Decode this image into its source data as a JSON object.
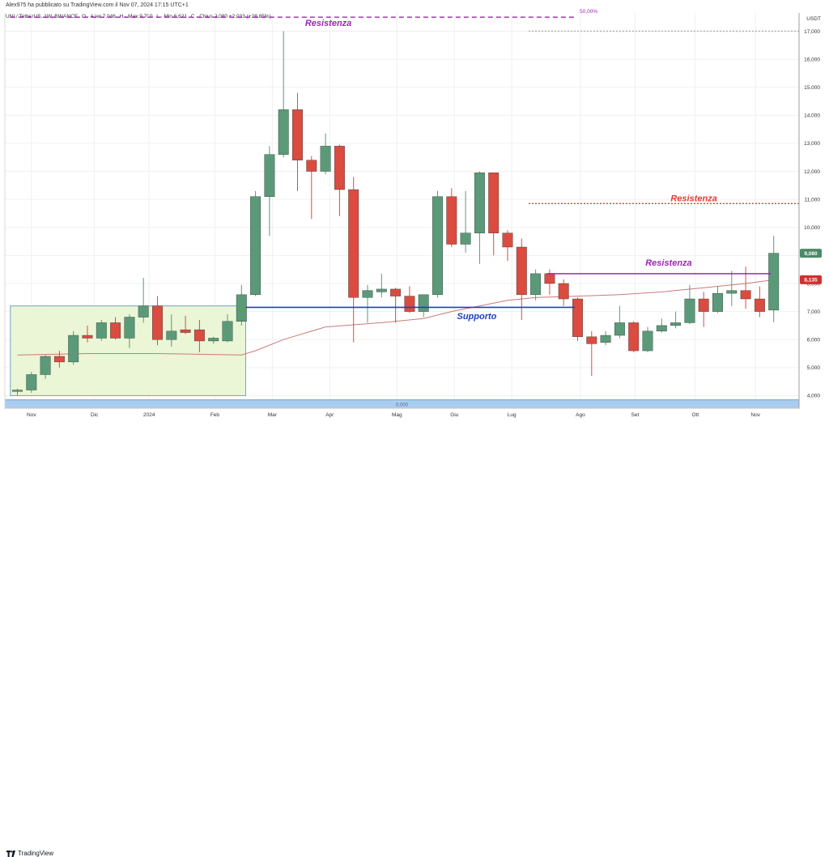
{
  "header": {
    "publisher": "Alex975 ha pubblicato su TradingView.com il Nov 07, 2024 17:15 UTC+1",
    "symbol": "UNI / TetherUS, 1W, BINANCE",
    "open": "O · Aper.7,046",
    "high": "H · Max.9,700",
    "low": "L · Min.6,621",
    "close": "C · Chius.9,080 +2,033 (+28,85%)"
  },
  "footer": {
    "brand": "TradingView"
  },
  "chart_data": {
    "type": "candlestick",
    "currency_label": "USDT",
    "ylim": [
      3.55,
      17.65
    ],
    "y_ticks": [
      4,
      5,
      6,
      7,
      8,
      9,
      10,
      11,
      12,
      13,
      14,
      15,
      16,
      17
    ],
    "y_tick_labels": [
      "4,000",
      "5,000",
      "6,000",
      "7,000",
      "8,000",
      "9,000",
      "10,000",
      "11,000",
      "12,000",
      "13,000",
      "14,000",
      "15,000",
      "16,000",
      "17,000"
    ],
    "x_labels": [
      {
        "label": "Nov",
        "index": 1
      },
      {
        "label": "Dic",
        "index": 5.5
      },
      {
        "label": "2024",
        "index": 9.4
      },
      {
        "label": "Feb",
        "index": 14.1
      },
      {
        "label": "Mar",
        "index": 18.2
      },
      {
        "label": "Apr",
        "index": 22.3
      },
      {
        "label": "Mag",
        "index": 27.1
      },
      {
        "label": "Giu",
        "index": 31.2
      },
      {
        "label": "Lug",
        "index": 35.3
      },
      {
        "label": "Ago",
        "index": 40.2
      },
      {
        "label": "Set",
        "index": 44.1
      },
      {
        "label": "Ott",
        "index": 48.4
      },
      {
        "label": "Nov",
        "index": 52.7
      }
    ],
    "candles": [
      {
        "o": 4.15,
        "h": 4.25,
        "l": 4.0,
        "c": 4.2
      },
      {
        "o": 4.2,
        "h": 4.85,
        "l": 4.1,
        "c": 4.75
      },
      {
        "o": 4.75,
        "h": 5.45,
        "l": 4.6,
        "c": 5.4
      },
      {
        "o": 5.4,
        "h": 5.6,
        "l": 5.0,
        "c": 5.2
      },
      {
        "o": 5.2,
        "h": 6.3,
        "l": 5.1,
        "c": 6.15
      },
      {
        "o": 6.15,
        "h": 6.5,
        "l": 5.9,
        "c": 6.05
      },
      {
        "o": 6.05,
        "h": 6.7,
        "l": 5.95,
        "c": 6.6
      },
      {
        "o": 6.6,
        "h": 6.8,
        "l": 6.0,
        "c": 6.05
      },
      {
        "o": 6.05,
        "h": 6.9,
        "l": 5.7,
        "c": 6.8
      },
      {
        "o": 6.8,
        "h": 8.2,
        "l": 6.6,
        "c": 7.2
      },
      {
        "o": 7.2,
        "h": 7.55,
        "l": 5.8,
        "c": 6.0
      },
      {
        "o": 6.0,
        "h": 6.9,
        "l": 5.75,
        "c": 6.3
      },
      {
        "o": 6.35,
        "h": 6.85,
        "l": 6.2,
        "c": 6.25
      },
      {
        "o": 6.35,
        "h": 6.7,
        "l": 5.55,
        "c": 5.95
      },
      {
        "o": 5.95,
        "h": 6.1,
        "l": 5.85,
        "c": 6.05
      },
      {
        "o": 5.95,
        "h": 6.9,
        "l": 5.9,
        "c": 6.65
      },
      {
        "o": 6.65,
        "h": 7.95,
        "l": 6.5,
        "c": 7.6
      },
      {
        "o": 7.6,
        "h": 11.3,
        "l": 7.55,
        "c": 11.1
      },
      {
        "o": 11.1,
        "h": 12.9,
        "l": 9.7,
        "c": 12.6
      },
      {
        "o": 12.6,
        "h": 17.0,
        "l": 12.5,
        "c": 14.2
      },
      {
        "o": 14.2,
        "h": 14.8,
        "l": 11.3,
        "c": 12.4
      },
      {
        "o": 12.4,
        "h": 12.55,
        "l": 10.3,
        "c": 12.0
      },
      {
        "o": 12.0,
        "h": 13.35,
        "l": 11.9,
        "c": 12.9
      },
      {
        "o": 12.9,
        "h": 12.95,
        "l": 10.4,
        "c": 11.35
      },
      {
        "o": 11.35,
        "h": 11.8,
        "l": 5.9,
        "c": 7.5
      },
      {
        "o": 7.5,
        "h": 7.95,
        "l": 6.6,
        "c": 7.75
      },
      {
        "o": 7.7,
        "h": 8.35,
        "l": 7.5,
        "c": 7.8
      },
      {
        "o": 7.8,
        "h": 7.85,
        "l": 6.6,
        "c": 7.55
      },
      {
        "o": 7.55,
        "h": 7.9,
        "l": 6.95,
        "c": 7.0
      },
      {
        "o": 7.0,
        "h": 7.6,
        "l": 6.8,
        "c": 7.6
      },
      {
        "o": 7.6,
        "h": 11.3,
        "l": 7.5,
        "c": 11.1
      },
      {
        "o": 11.1,
        "h": 11.4,
        "l": 9.3,
        "c": 9.4
      },
      {
        "o": 9.4,
        "h": 11.3,
        "l": 9.1,
        "c": 9.8
      },
      {
        "o": 9.8,
        "h": 12.0,
        "l": 8.7,
        "c": 11.95
      },
      {
        "o": 11.95,
        "h": 11.95,
        "l": 9.0,
        "c": 9.8
      },
      {
        "o": 9.8,
        "h": 9.9,
        "l": 8.8,
        "c": 9.3
      },
      {
        "o": 9.3,
        "h": 9.6,
        "l": 6.7,
        "c": 7.6
      },
      {
        "o": 7.6,
        "h": 8.5,
        "l": 7.4,
        "c": 8.35
      },
      {
        "o": 8.35,
        "h": 8.5,
        "l": 7.6,
        "c": 8.0
      },
      {
        "o": 8.0,
        "h": 8.15,
        "l": 7.2,
        "c": 7.45
      },
      {
        "o": 7.45,
        "h": 7.5,
        "l": 5.95,
        "c": 6.1
      },
      {
        "o": 6.1,
        "h": 6.3,
        "l": 4.7,
        "c": 5.85
      },
      {
        "o": 5.9,
        "h": 6.3,
        "l": 5.8,
        "c": 6.15
      },
      {
        "o": 6.15,
        "h": 7.2,
        "l": 6.05,
        "c": 6.6
      },
      {
        "o": 6.6,
        "h": 6.65,
        "l": 5.55,
        "c": 5.6
      },
      {
        "o": 5.6,
        "h": 6.45,
        "l": 5.55,
        "c": 6.3
      },
      {
        "o": 6.3,
        "h": 6.75,
        "l": 6.25,
        "c": 6.5
      },
      {
        "o": 6.5,
        "h": 7.0,
        "l": 6.4,
        "c": 6.6
      },
      {
        "o": 6.6,
        "h": 7.95,
        "l": 6.55,
        "c": 7.45
      },
      {
        "o": 7.45,
        "h": 7.7,
        "l": 6.45,
        "c": 7.0
      },
      {
        "o": 7.0,
        "h": 7.9,
        "l": 6.95,
        "c": 7.65
      },
      {
        "o": 7.65,
        "h": 8.45,
        "l": 7.2,
        "c": 7.75
      },
      {
        "o": 7.75,
        "h": 8.6,
        "l": 7.1,
        "c": 7.45
      },
      {
        "o": 7.45,
        "h": 7.9,
        "l": 6.8,
        "c": 7.0
      },
      {
        "o": 7.05,
        "h": 9.7,
        "l": 6.62,
        "c": 9.08
      }
    ],
    "moving_average": [
      [
        0,
        5.45
      ],
      [
        5,
        5.5
      ],
      [
        10,
        5.5
      ],
      [
        16,
        5.45
      ],
      [
        17,
        5.6
      ],
      [
        19,
        6.0
      ],
      [
        22,
        6.45
      ],
      [
        26,
        6.6
      ],
      [
        29,
        6.75
      ],
      [
        31,
        7.0
      ],
      [
        33,
        7.2
      ],
      [
        35,
        7.4
      ],
      [
        37,
        7.5
      ],
      [
        40,
        7.55
      ],
      [
        43,
        7.6
      ],
      [
        46,
        7.7
      ],
      [
        49,
        7.85
      ],
      [
        52,
        8.0
      ],
      [
        54,
        8.13
      ]
    ],
    "support_zone": {
      "x_start_index": -0.5,
      "x_end_index": 16.3,
      "y_low": 4.0,
      "y_high": 7.2
    },
    "bottom_zone": {
      "y_low": 3.55,
      "y_high": 3.85,
      "label": "0,000"
    },
    "levels": [
      {
        "name": "fib-50-line",
        "label": "50,00%",
        "y": 17.5,
        "x_start_index": -0.5,
        "x_end_index": 39.8,
        "style": "dashed",
        "color": "#9c27b0"
      },
      {
        "name": "top-grey-line",
        "label": "",
        "y": 17.0,
        "x_start_index": 36.5,
        "x_end_index": 55.8,
        "style": "dotted",
        "color": "#b0b0b0"
      },
      {
        "name": "red-resistance-line",
        "label": "",
        "y": 10.85,
        "x_start_index": 36.5,
        "x_end_index": 55.8,
        "style": "dotted",
        "color": "#e53935"
      },
      {
        "name": "purple-resistance-line",
        "label": "",
        "y": 8.35,
        "x_start_index": 37.8,
        "x_end_index": 53.8,
        "style": "solid",
        "color": "#9c27b0"
      },
      {
        "name": "support-line",
        "label": "",
        "y": 7.15,
        "x_start_index": 16.3,
        "x_end_index": 39.8,
        "style": "solid",
        "color": "#1e40c4"
      }
    ],
    "annotations": [
      {
        "name": "resistance-label-top",
        "text": "Resistenza",
        "index": 22.2,
        "y": 17.3,
        "color": "#9c27b0"
      },
      {
        "name": "resistance-label-red",
        "text": "Resistenza",
        "index": 48.3,
        "y": 11.05,
        "color": "#e53935"
      },
      {
        "name": "resistance-label-purple",
        "text": "Resistenza",
        "index": 46.5,
        "y": 8.75,
        "color": "#9c27b0"
      },
      {
        "name": "support-label",
        "text": "Supporto",
        "index": 32.8,
        "y": 6.85,
        "color": "#1e40c4"
      }
    ],
    "price_tags": [
      {
        "name": "last-price-tag",
        "label": "9,080",
        "y": 9.08,
        "color": "#4a8a66"
      },
      {
        "name": "ma-price-tag",
        "label": "8,135",
        "y": 8.135,
        "color": "#d32f2f"
      }
    ],
    "colors": {
      "up": "#5b9a78",
      "down": "#db4b3f",
      "ma": "#c97a7a",
      "grid": "#f0f0f0",
      "zone_fill": "#eaf6d6",
      "zone_stroke": "#6fa3c9",
      "bottom_fill": "#a9cdf0"
    }
  }
}
